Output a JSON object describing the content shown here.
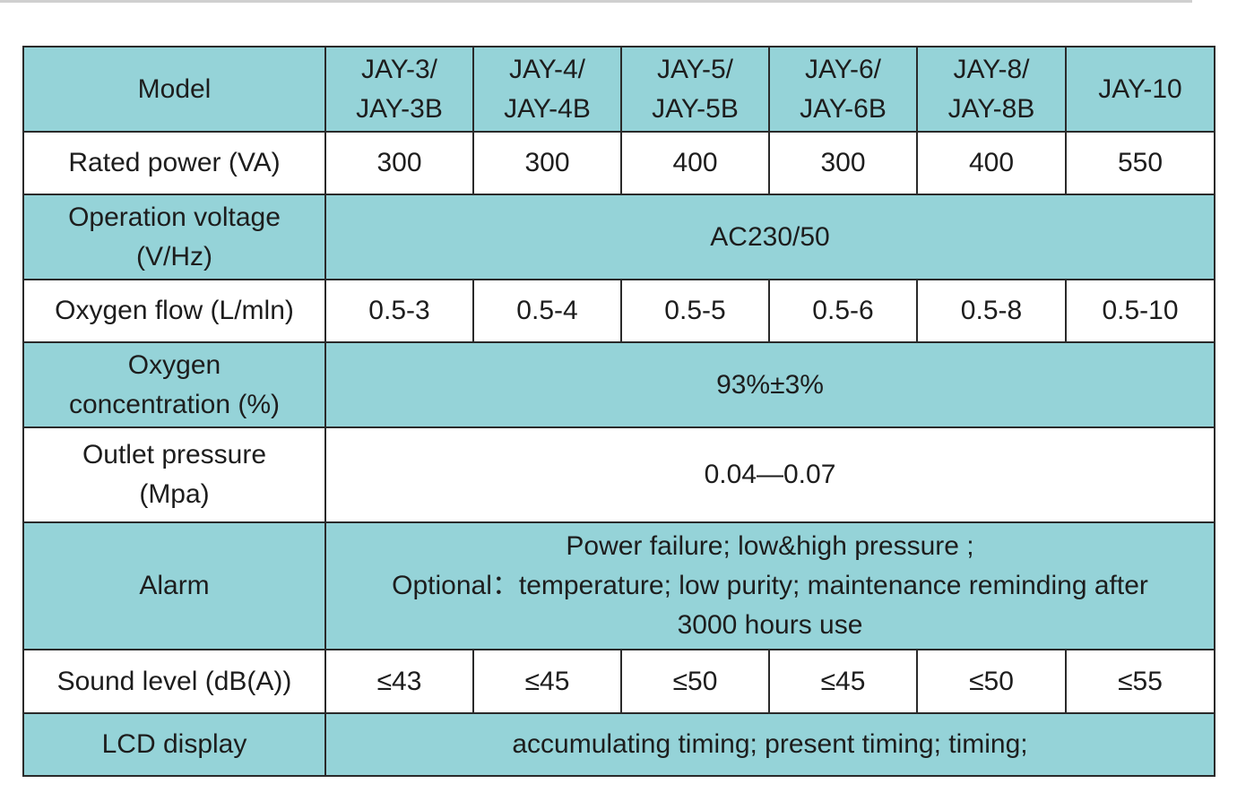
{
  "table": {
    "header": {
      "label": "Model",
      "models": [
        [
          "JAY-3/",
          "JAY-3B"
        ],
        [
          "JAY-4/",
          "JAY-4B"
        ],
        [
          "JAY-5/",
          "JAY-5B"
        ],
        [
          "JAY-6/",
          "JAY-6B"
        ],
        [
          "JAY-8/",
          "JAY-8B"
        ],
        [
          "JAY-10"
        ]
      ]
    },
    "rated_power": {
      "label": "Rated power (VA)",
      "values": [
        "300",
        "300",
        "400",
        "300",
        "400",
        "550"
      ]
    },
    "operation_voltage": {
      "label_lines": [
        "Operation voltage",
        "(V/Hz)"
      ],
      "value": "AC230/50"
    },
    "oxygen_flow": {
      "label": "Oxygen flow (L/mln)",
      "values": [
        "0.5-3",
        "0.5-4",
        "0.5-5",
        "0.5-6",
        "0.5-8",
        "0.5-10"
      ]
    },
    "oxygen_concentration": {
      "label_lines": [
        "Oxygen",
        "concentration (%)"
      ],
      "value": "93%±3%"
    },
    "outlet_pressure": {
      "label_lines": [
        "Outlet pressure",
        "(Mpa)"
      ],
      "value": "0.04—0.07"
    },
    "alarm": {
      "label": "Alarm",
      "lines": [
        "Power failure; low&high pressure ;",
        "Optional：temperature; low purity; maintenance reminding after",
        "3000 hours use"
      ]
    },
    "sound_level": {
      "label": "Sound level  (dB(A))",
      "values": [
        "≤43",
        "≤45",
        "≤50",
        "≤45",
        "≤50",
        "≤55"
      ]
    },
    "lcd_display": {
      "label": "LCD display",
      "value": "accumulating timing; present timing; timing;"
    }
  }
}
